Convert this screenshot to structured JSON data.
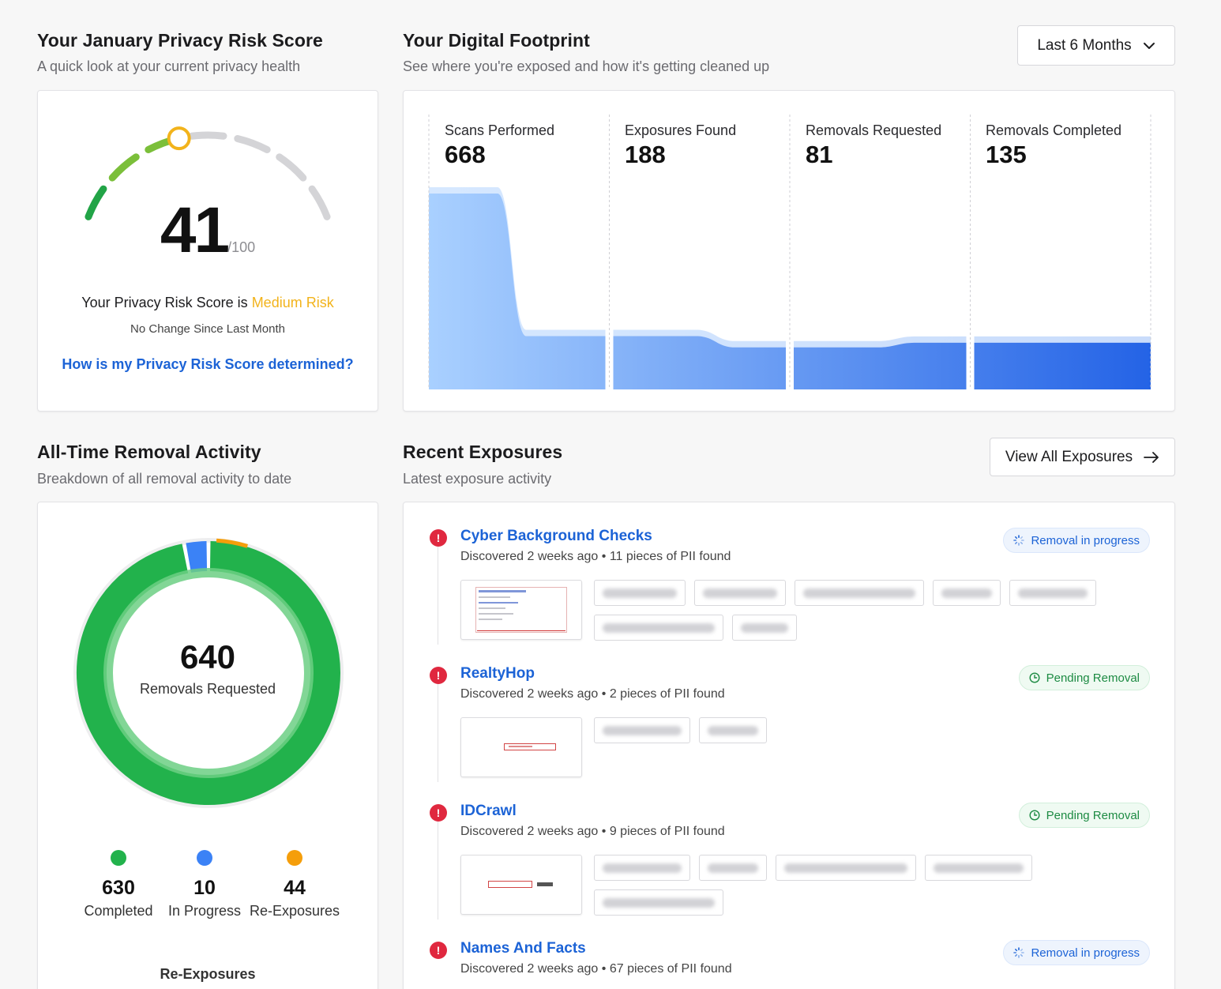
{
  "risk": {
    "title": "Your January Privacy Risk Score",
    "subtitle": "A quick look at your current privacy health",
    "score": "41",
    "score_max": "/100",
    "score_value": 41,
    "level_prefix": "Your Privacy Risk Score is ",
    "level": "Medium Risk",
    "change": "No Change Since Last Month",
    "link": "How is my Privacy Risk Score determined?",
    "colors": {
      "green": "#22a447",
      "light_green": "#7bbf3a",
      "medium": "#f2b31b",
      "track": "#d4d4d7"
    }
  },
  "footprint": {
    "title": "Your Digital Footprint",
    "subtitle": "See where you're exposed and how it's getting cleaned up",
    "period_button": "Last 6 Months",
    "metrics": [
      {
        "label": "Scans Performed",
        "value": "668"
      },
      {
        "label": "Exposures Found",
        "value": "188"
      },
      {
        "label": "Removals Requested",
        "value": "81"
      },
      {
        "label": "Removals Completed",
        "value": "135"
      }
    ],
    "colors": {
      "start": "#a9d0ff",
      "end": "#2463e6"
    }
  },
  "removal": {
    "title": "All-Time Removal Activity",
    "subtitle": "Breakdown of all removal activity to date",
    "total": "640",
    "total_label": "Removals Requested",
    "segments": [
      {
        "value": "630",
        "label": "Completed",
        "amount": 630,
        "color": "#22b24c"
      },
      {
        "value": "10",
        "label": "In Progress",
        "amount": 10,
        "color": "#3b82f6"
      },
      {
        "value": "44",
        "label": "Re-Exposures",
        "amount": 44,
        "color": "#f59e0b"
      }
    ],
    "footer_label": "Re-Exposures"
  },
  "exposures": {
    "title": "Recent Exposures",
    "subtitle": "Latest exposure activity",
    "view_all": "View All Exposures",
    "items": [
      {
        "name": "Cyber Background Checks",
        "discovered": "Discovered 2 weeks ago",
        "pii": "11 pieces of PII found",
        "status": "Removal in progress",
        "status_type": "progress"
      },
      {
        "name": "RealtyHop",
        "discovered": "Discovered 2 weeks ago",
        "pii": "2 pieces of PII found",
        "status": "Pending Removal",
        "status_type": "pending"
      },
      {
        "name": "IDCrawl",
        "discovered": "Discovered 2 weeks ago",
        "pii": "9 pieces of PII found",
        "status": "Pending Removal",
        "status_type": "pending"
      },
      {
        "name": "Names And Facts",
        "discovered": "Discovered 2 weeks ago",
        "pii": "67 pieces of PII found",
        "status": "Removal in progress",
        "status_type": "progress"
      }
    ],
    "separator": "•"
  }
}
